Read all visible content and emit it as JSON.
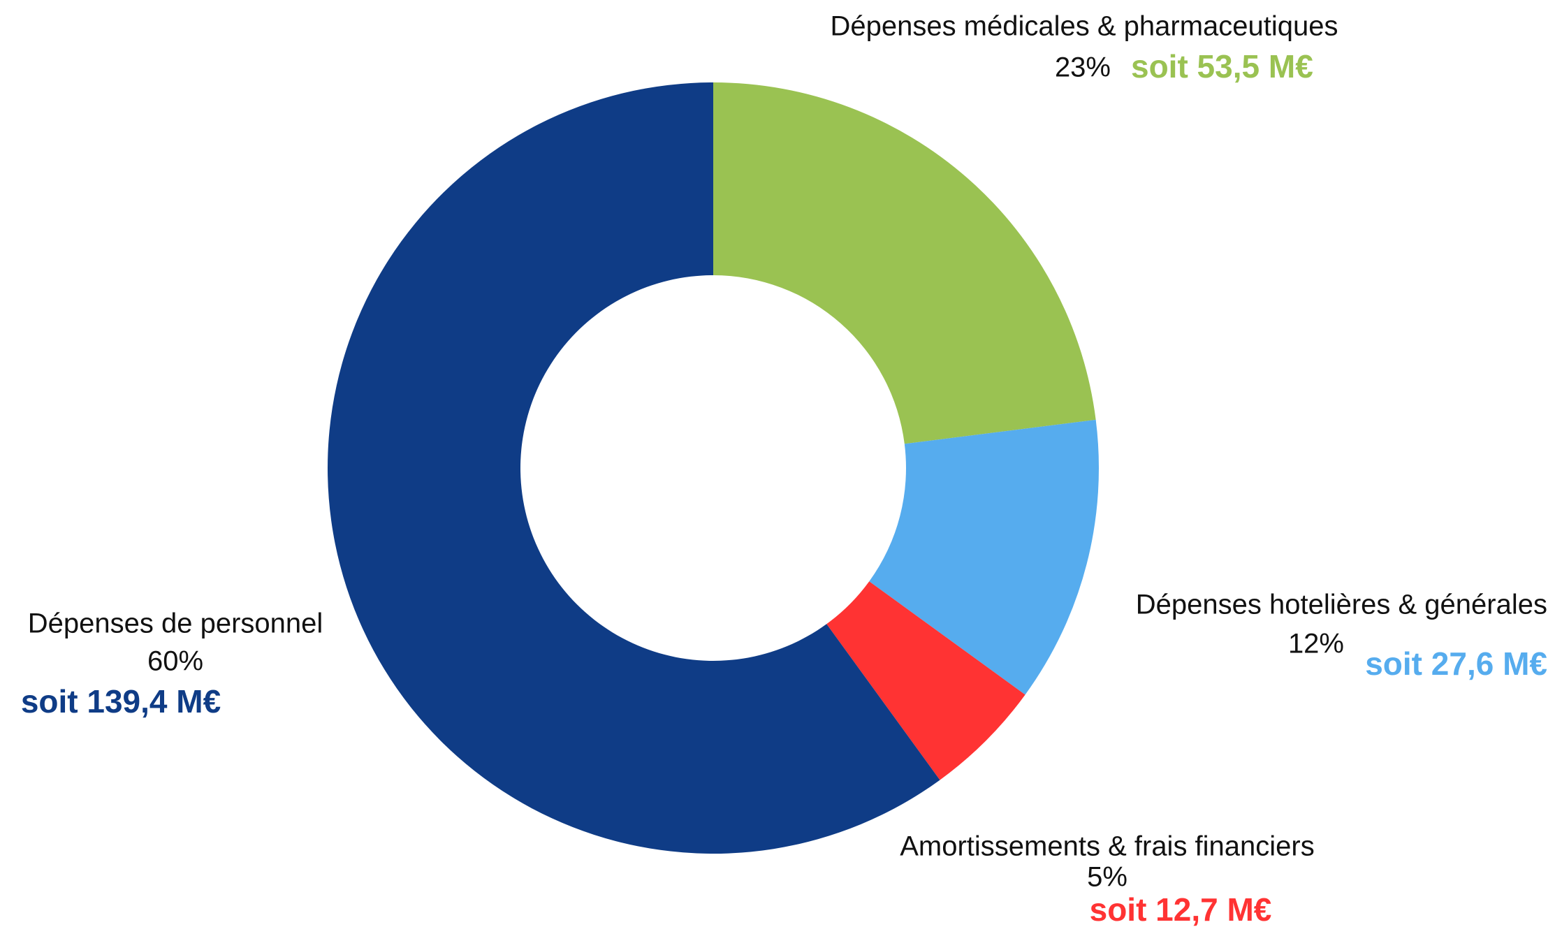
{
  "chart_data": {
    "type": "donut",
    "categories": [
      "Dépenses médicales & pharmaceutiques",
      "Dépenses hotelières & générales",
      "Amortissements & frais financiers",
      "Dépenses de personnel"
    ],
    "values": [
      23,
      12,
      5,
      60
    ],
    "value_labels": [
      "23%",
      "12%",
      "5%",
      "60%"
    ],
    "annotations": [
      "soit 53,5 M€",
      "soit 27,6 M€",
      "soit 12,7 M€",
      "soit 139,4 M€"
    ],
    "colors": [
      "#9ac252",
      "#56acee",
      "#ff3333",
      "#0f3c86"
    ]
  }
}
